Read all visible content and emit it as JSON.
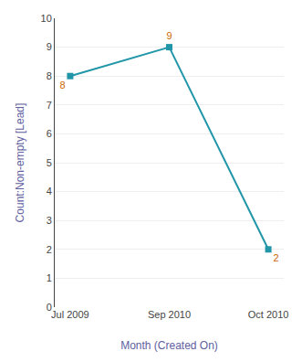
{
  "chart_data": {
    "type": "line",
    "categories": [
      "Jul 2009",
      "Sep 2010",
      "Oct 2010"
    ],
    "values": [
      8,
      9,
      2
    ],
    "color": "#2196a8",
    "marker": "square",
    "xlabel": "Month (Created On)",
    "ylabel": "Count:Non-empty [Lead]",
    "ylim": [
      0,
      10
    ],
    "yticks": [
      0,
      1,
      2,
      3,
      4,
      5,
      6,
      7,
      8,
      9,
      10
    ],
    "grid": true,
    "data_labels": true
  }
}
